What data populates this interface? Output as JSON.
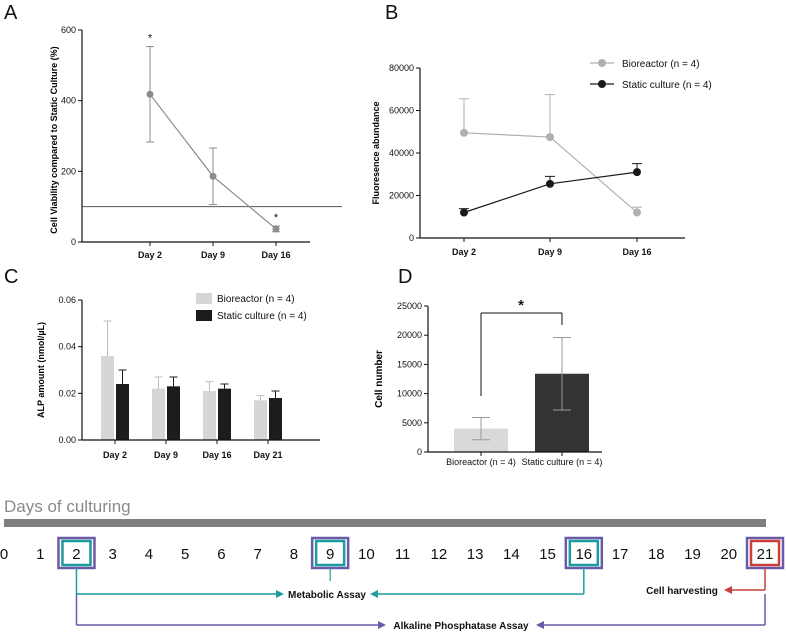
{
  "panels": {
    "a": "A",
    "b": "B",
    "c": "C",
    "d": "D"
  },
  "chart_data": [
    {
      "panel": "A",
      "type": "line",
      "ylabel": "Cell Viability compared to Static Culture (%)",
      "categories": [
        "Day 2",
        "Day 9",
        "Day 16"
      ],
      "ylim": [
        0,
        600
      ],
      "yticks": [
        0,
        200,
        400,
        600
      ],
      "values": [
        418,
        186,
        37
      ],
      "errors": [
        135,
        80,
        8
      ],
      "reference_line": 100,
      "annotations": [
        "*",
        "",
        "*"
      ]
    },
    {
      "panel": "B",
      "type": "line",
      "ylabel": "Fluoresence abundance",
      "categories": [
        "Day 2",
        "Day 9",
        "Day 16"
      ],
      "ylim": [
        0,
        80000
      ],
      "yticks": [
        0,
        20000,
        40000,
        60000,
        80000
      ],
      "series": [
        {
          "name": "Bioreactor (n = 4)",
          "color": "#b0b0b0",
          "values": [
            49500,
            47500,
            12000
          ],
          "errors": [
            16000,
            20000,
            2500
          ]
        },
        {
          "name": "Static culture (n = 4)",
          "color": "#1a1a1a",
          "values": [
            12000,
            25500,
            31000
          ],
          "errors": [
            1800,
            3500,
            4000
          ]
        }
      ]
    },
    {
      "panel": "C",
      "type": "bar",
      "ylabel": "ALP amount (nmol/µL)",
      "categories": [
        "Day 2",
        "Day 9",
        "Day 16",
        "Day 21"
      ],
      "ylim": [
        0,
        0.06
      ],
      "yticks": [
        "0.00",
        "0.02",
        "0.04",
        "0.06"
      ],
      "series": [
        {
          "name": "Bioreactor (n = 4)",
          "color": "#d6d6d6",
          "values": [
            0.036,
            0.022,
            0.021,
            0.017
          ],
          "errors": [
            0.015,
            0.005,
            0.004,
            0.002
          ]
        },
        {
          "name": "Static culture (n = 4)",
          "color": "#1c1c1c",
          "values": [
            0.024,
            0.023,
            0.022,
            0.018
          ],
          "errors": [
            0.006,
            0.004,
            0.002,
            0.003
          ]
        }
      ]
    },
    {
      "panel": "D",
      "type": "bar",
      "ylabel": "Cell number",
      "categories": [
        "Bioreactor (n = 4)",
        "Static culture (n = 4)"
      ],
      "ylim": [
        0,
        25000
      ],
      "yticks": [
        0,
        5000,
        10000,
        15000,
        20000,
        25000
      ],
      "values": [
        4000,
        13400
      ],
      "errors": [
        1900,
        6200
      ],
      "colors": [
        "#d9d9d9",
        "#333333"
      ],
      "significance": "*"
    }
  ],
  "timeline": {
    "title": "Days of culturing",
    "days": [
      "0",
      "1",
      "2",
      "3",
      "4",
      "5",
      "6",
      "7",
      "8",
      "9",
      "10",
      "11",
      "12",
      "13",
      "14",
      "15",
      "16",
      "17",
      "18",
      "19",
      "20",
      "21"
    ],
    "metabolic_label": "Metabolic Assay",
    "alp_label": "Alkaline Phosphatase Assay",
    "harvest_label": "Cell harvesting",
    "colors": {
      "teal": "#1c9c9c",
      "purple": "#6a5aa8",
      "red": "#c8403a"
    }
  }
}
